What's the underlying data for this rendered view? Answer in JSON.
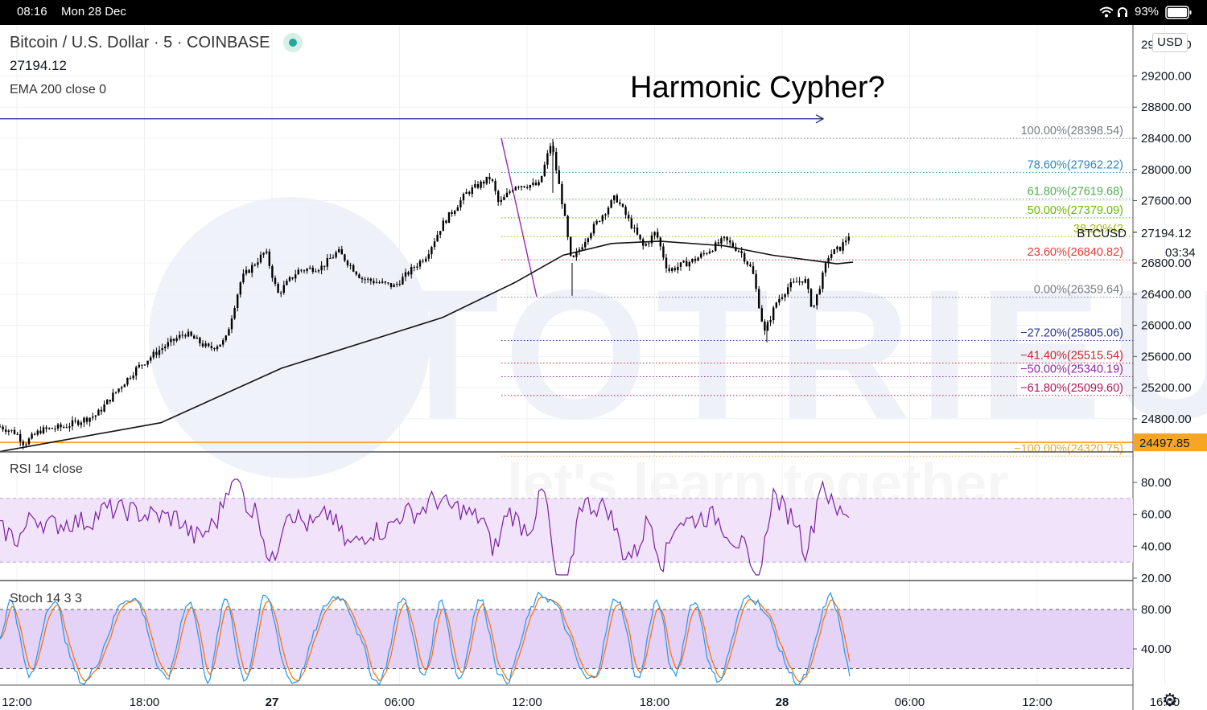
{
  "status_bar": {
    "time": "08:16",
    "date": "Mon 28 Dec",
    "battery": "93%"
  },
  "header": {
    "symbol": "Bitcoin / U.S. Dollar · 5 · COINBASE",
    "last_price": "27194.12",
    "indicator": "EMA 200 close 0",
    "currency_button": "USD"
  },
  "annotation": "Harmonic Cypher?",
  "price_axis": {
    "ticks": [
      "29200.00",
      "28800.00",
      "28400.00",
      "28000.00",
      "27600.00",
      "26800.00",
      "26400.00",
      "26000.00",
      "25600.00",
      "25200.00",
      "24800.00"
    ],
    "cut_top_label": "29600.00",
    "symbol_label": "BTCUSD",
    "current_price_label": "27194.12",
    "countdown": "03:34",
    "alert_price_label": "24497.85"
  },
  "time_axis": [
    "12:00",
    "18:00",
    "27",
    "06:00",
    "12:00",
    "18:00",
    "28",
    "06:00",
    "12:00",
    "16:00"
  ],
  "rsi": {
    "label": "RSI 14 close",
    "ticks": [
      "80.00",
      "60.00",
      "40.00",
      "20.00"
    ]
  },
  "stoch": {
    "label": "Stoch 14 3 3",
    "ticks": [
      "80.00",
      "40.00"
    ]
  },
  "fib_levels": [
    {
      "label": "100.00%(28398.54)",
      "price": 28398.54,
      "color": "#787b86"
    },
    {
      "label": "78.60%(27962.22)",
      "price": 27962.22,
      "color": "#2e86c1"
    },
    {
      "label": "61.80%(27619.68)",
      "price": 27619.68,
      "color": "#4caf50"
    },
    {
      "label": "50.00%(27379.09)",
      "price": 27379.09,
      "color": "#66bb00"
    },
    {
      "label": "38.20%(2",
      "price": 27138.5,
      "color": "#a6b800"
    },
    {
      "label": "23.60%(26840.82)",
      "price": 26840.82,
      "color": "#e53935"
    },
    {
      "label": "0.00%(26359.64)",
      "price": 26359.64,
      "color": "#787b86"
    },
    {
      "label": "−27.20%(25805.06)",
      "price": 25805.06,
      "color": "#283593"
    },
    {
      "label": "−41.40%(25515.54)",
      "price": 25515.54,
      "color": "#c62828"
    },
    {
      "label": "−50.00%(25340.19)",
      "price": 25340.19,
      "color": "#8e24aa"
    },
    {
      "label": "−61.80%(25099.60)",
      "price": 25099.6,
      "color": "#ad1457"
    },
    {
      "label": "−100.00%(24320.75)",
      "price": 24320.75,
      "color": "#f5a623"
    }
  ],
  "colors": {
    "candles": "#000000",
    "ema": "#111111",
    "rsi_line": "#7b1fa2",
    "rsi_band": "#f1e4fa",
    "stoch_band": "#e4d2f7",
    "stoch_k": "#2196f3",
    "stoch_d": "#ff6d00",
    "blue_ray": "#1a237e",
    "purple_leg": "#9c27b0",
    "orange_line": "#ff9800",
    "live_dot": "#26a69a"
  },
  "chart_data": {
    "type": "candlestick",
    "symbol": "Bitcoin / U.S. Dollar",
    "timeframe": "5",
    "exchange": "COINBASE",
    "ylim": [
      24300,
      29700
    ],
    "price_path": [
      {
        "t": 0,
        "p": 24700
      },
      {
        "t": 0.02,
        "p": 24620
      },
      {
        "t": 0.03,
        "p": 24480
      },
      {
        "t": 0.05,
        "p": 24650
      },
      {
        "t": 0.08,
        "p": 24700
      },
      {
        "t": 0.12,
        "p": 24850
      },
      {
        "t": 0.14,
        "p": 25100
      },
      {
        "t": 0.17,
        "p": 25450
      },
      {
        "t": 0.2,
        "p": 25700
      },
      {
        "t": 0.23,
        "p": 25900
      },
      {
        "t": 0.26,
        "p": 25700
      },
      {
        "t": 0.28,
        "p": 25800
      },
      {
        "t": 0.3,
        "p": 26600
      },
      {
        "t": 0.33,
        "p": 26950
      },
      {
        "t": 0.345,
        "p": 26400
      },
      {
        "t": 0.37,
        "p": 26700
      },
      {
        "t": 0.4,
        "p": 26750
      },
      {
        "t": 0.42,
        "p": 26950
      },
      {
        "t": 0.45,
        "p": 26600
      },
      {
        "t": 0.49,
        "p": 26500
      },
      {
        "t": 0.53,
        "p": 26900
      },
      {
        "t": 0.55,
        "p": 27300
      },
      {
        "t": 0.58,
        "p": 27700
      },
      {
        "t": 0.61,
        "p": 27900
      },
      {
        "t": 0.62,
        "p": 27550
      },
      {
        "t": 0.64,
        "p": 27800
      },
      {
        "t": 0.67,
        "p": 27800
      },
      {
        "t": 0.685,
        "p": 28350
      },
      {
        "t": 0.7,
        "p": 27500
      },
      {
        "t": 0.71,
        "p": 26800
      },
      {
        "t": 0.73,
        "p": 27150
      },
      {
        "t": 0.765,
        "p": 27650
      },
      {
        "t": 0.8,
        "p": 27000
      },
      {
        "t": 0.815,
        "p": 27200
      },
      {
        "t": 0.83,
        "p": 26700
      },
      {
        "t": 0.865,
        "p": 26850
      },
      {
        "t": 0.9,
        "p": 27100
      },
      {
        "t": 0.92,
        "p": 26950
      },
      {
        "t": 0.935,
        "p": 26700
      },
      {
        "t": 0.95,
        "p": 25900
      },
      {
        "t": 0.965,
        "p": 26300
      },
      {
        "t": 0.98,
        "p": 26500
      },
      {
        "t": 1.0,
        "p": 26600
      },
      {
        "t": 1.01,
        "p": 26200
      },
      {
        "t": 1.03,
        "p": 26900
      },
      {
        "t": 1.045,
        "p": 27000
      },
      {
        "t": 1.057,
        "p": 27194
      }
    ],
    "ema200_path": [
      {
        "t": 0,
        "p": 24380
      },
      {
        "t": 0.2,
        "p": 24750
      },
      {
        "t": 0.35,
        "p": 25450
      },
      {
        "t": 0.55,
        "p": 26100
      },
      {
        "t": 0.64,
        "p": 26550
      },
      {
        "t": 0.7,
        "p": 26900
      },
      {
        "t": 0.76,
        "p": 27050
      },
      {
        "t": 0.82,
        "p": 27080
      },
      {
        "t": 0.9,
        "p": 27020
      },
      {
        "t": 0.96,
        "p": 26900
      },
      {
        "t": 1.04,
        "p": 26790
      },
      {
        "t": 1.06,
        "p": 26810
      }
    ],
    "horizontal_lines": [
      {
        "price": 28650,
        "color": "blue",
        "note": "ray with arrow"
      },
      {
        "price": 24497.85,
        "color": "orange"
      }
    ],
    "rsi_bands": [
      70,
      30
    ],
    "stoch_bands": [
      80,
      20
    ]
  }
}
